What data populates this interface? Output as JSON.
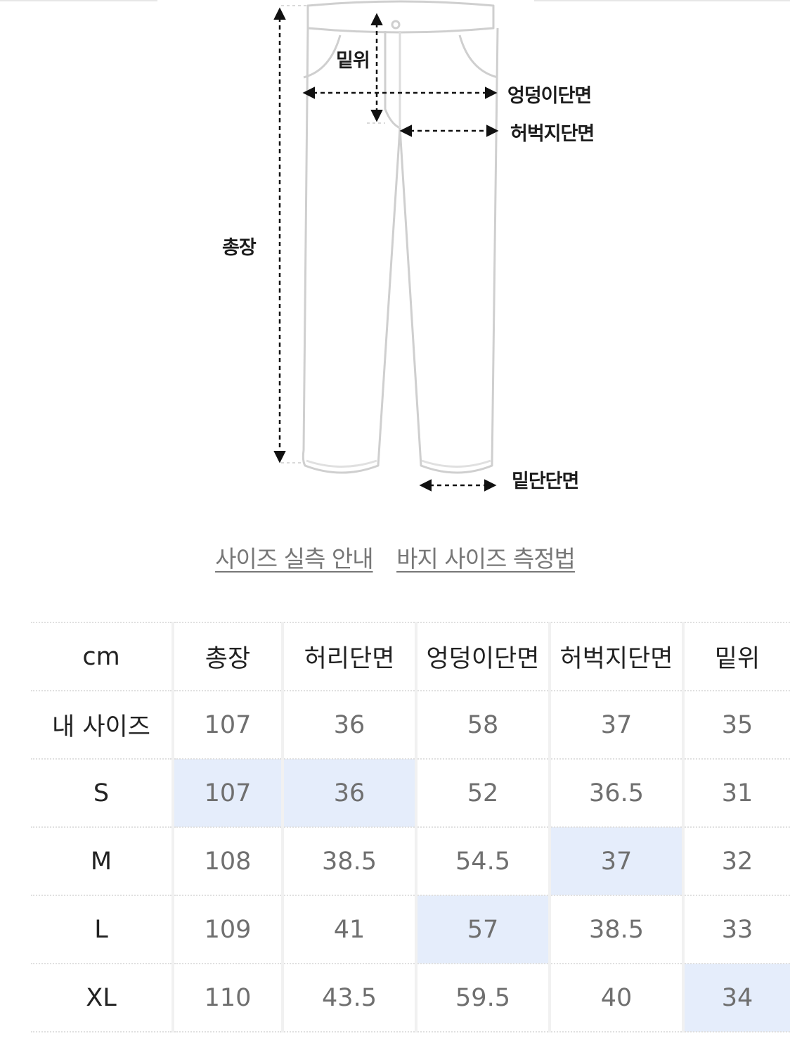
{
  "diagram": {
    "labels": {
      "rise": "밑위",
      "hip": "엉덩이단면",
      "thigh": "허벅지단면",
      "total_length": "총장",
      "hem": "밑단단면"
    }
  },
  "links": {
    "size_guide": "사이즈 실측 안내",
    "measure_method": "바지 사이즈 측정법"
  },
  "table": {
    "headers": [
      "cm",
      "총장",
      "허리단면",
      "엉덩이단면",
      "허벅지단면",
      "밑위"
    ],
    "rows": [
      {
        "label": "내 사이즈",
        "values": [
          "107",
          "36",
          "58",
          "37",
          "35"
        ]
      },
      {
        "label": "S",
        "values": [
          "107",
          "36",
          "52",
          "36.5",
          "31"
        ]
      },
      {
        "label": "M",
        "values": [
          "108",
          "38.5",
          "54.5",
          "37",
          "32"
        ]
      },
      {
        "label": "L",
        "values": [
          "109",
          "41",
          "57",
          "38.5",
          "33"
        ]
      },
      {
        "label": "XL",
        "values": [
          "110",
          "43.5",
          "59.5",
          "40",
          "34"
        ]
      }
    ]
  },
  "colors": {
    "highlight": "#e5edfb",
    "link_text": "#777777"
  }
}
